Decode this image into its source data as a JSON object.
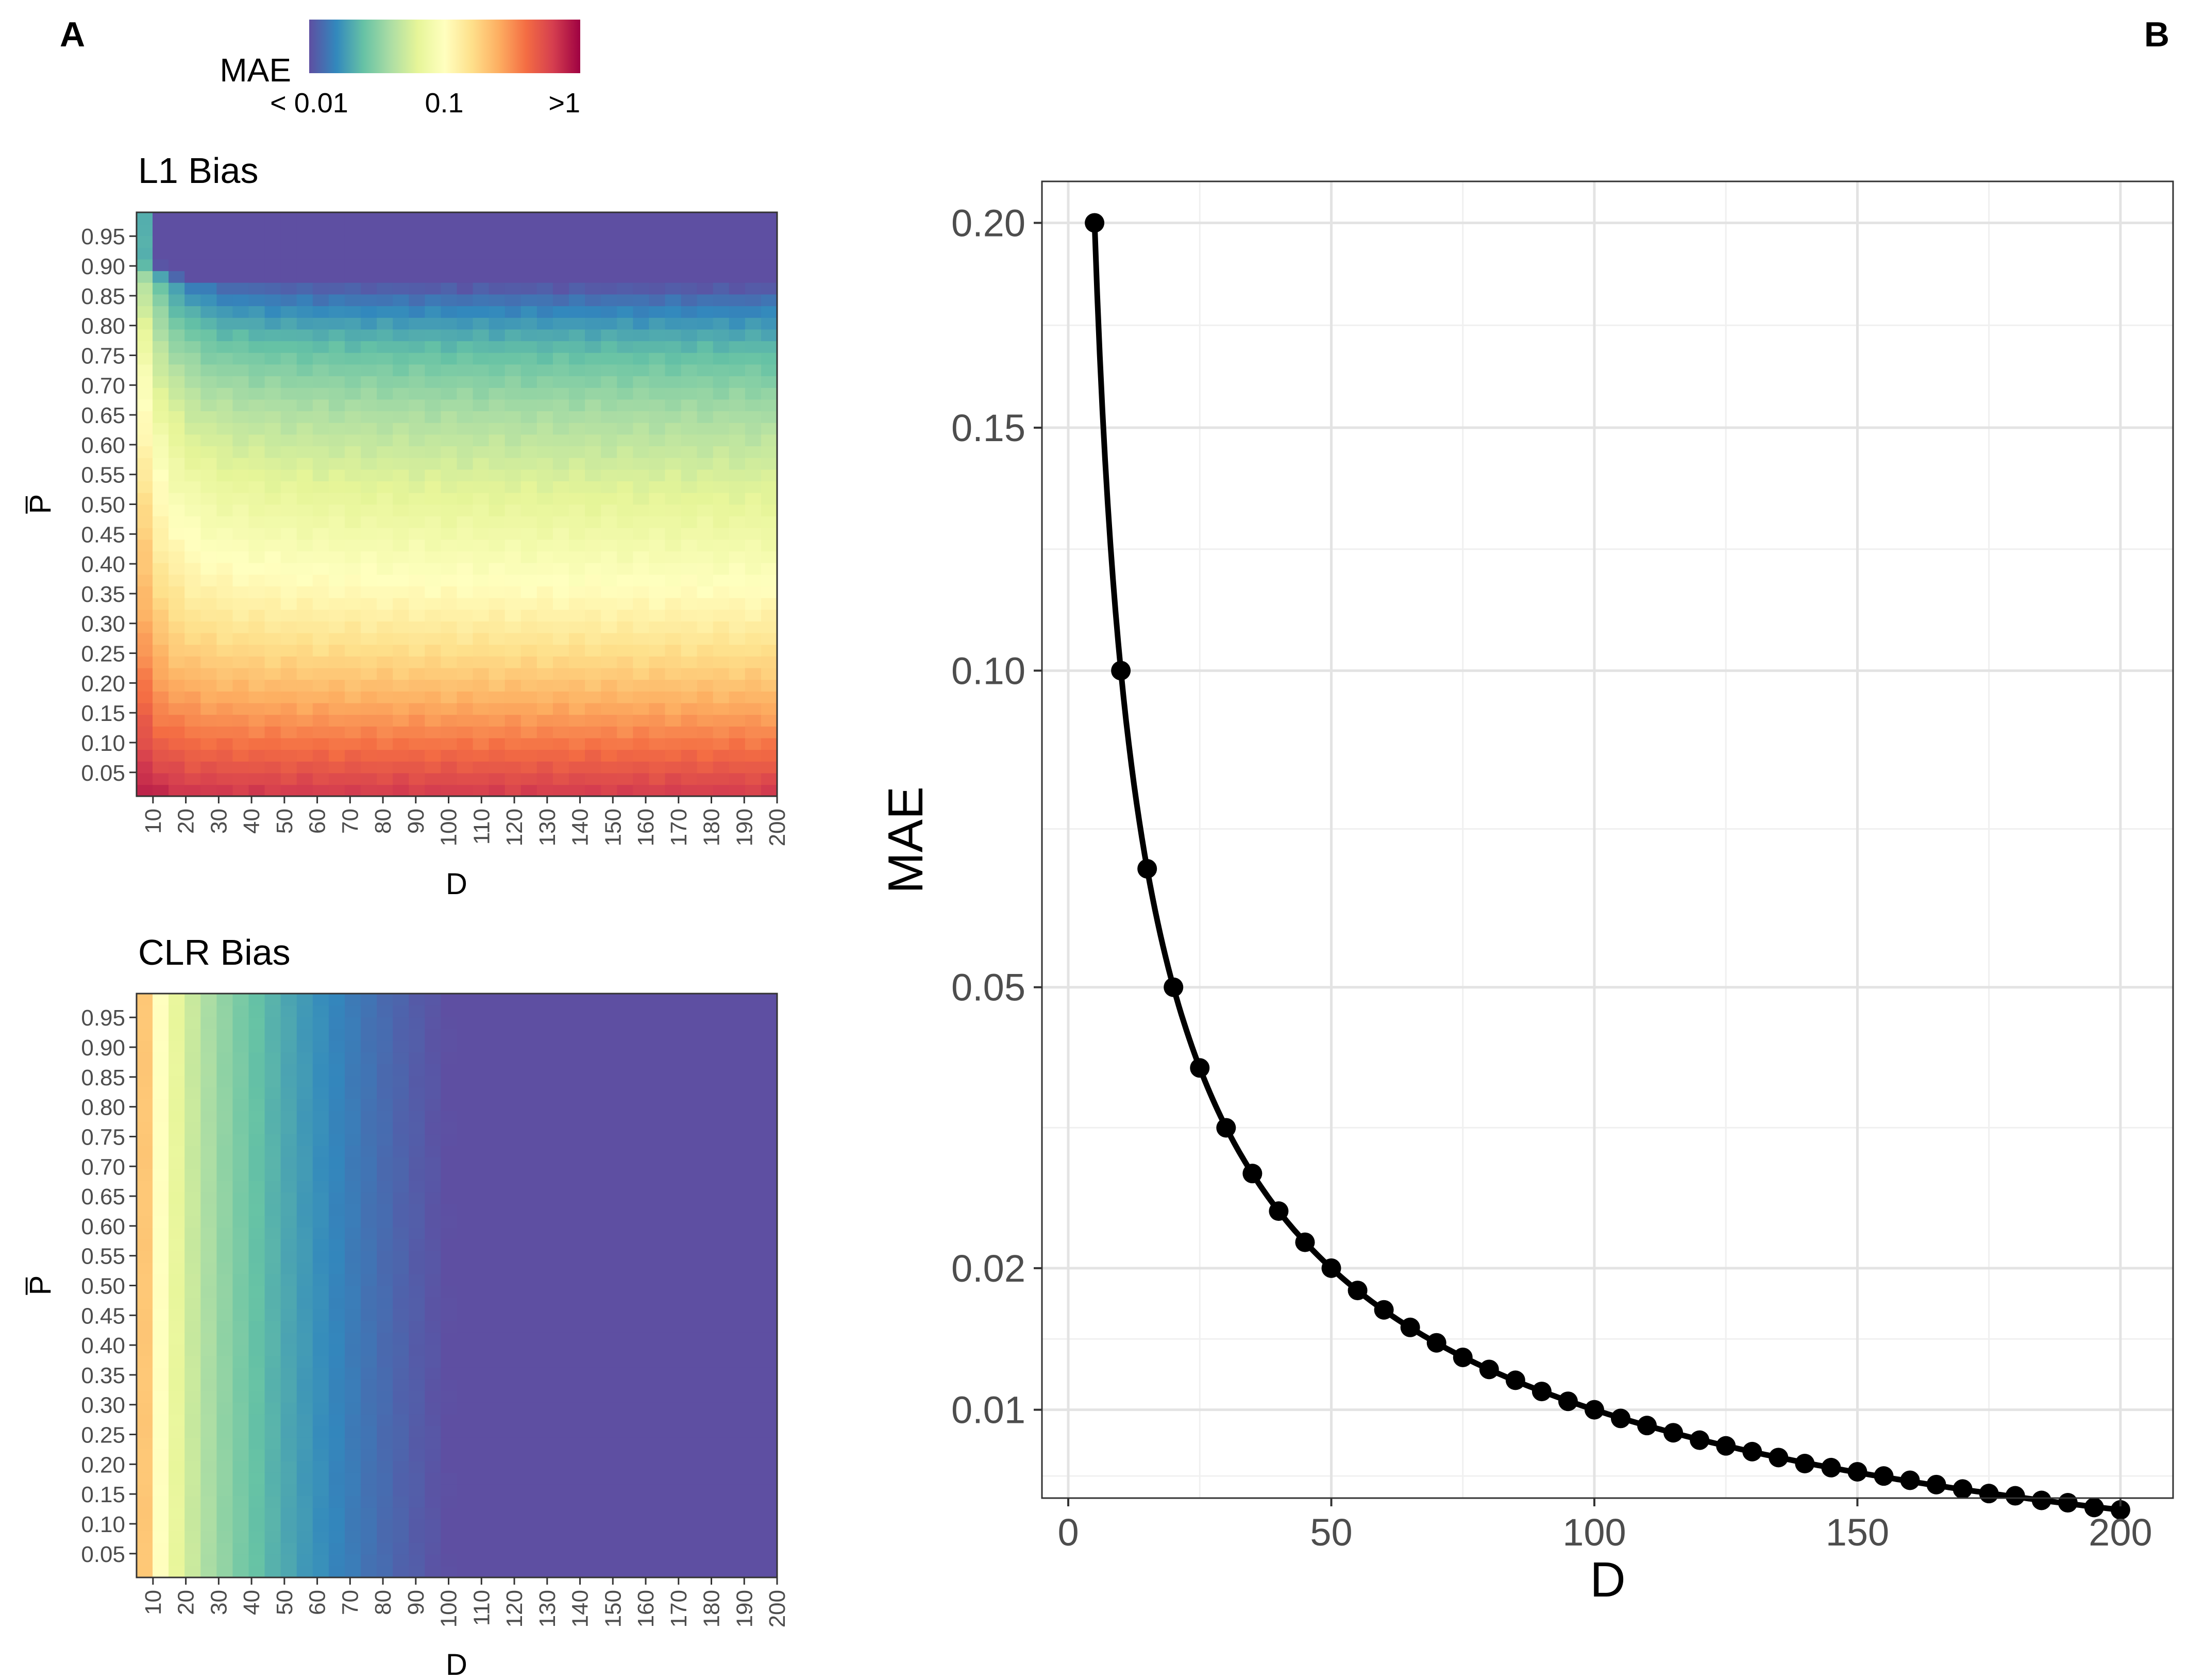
{
  "panel_labels": {
    "a": "A",
    "b": "B"
  },
  "colorbar": {
    "title": "MAE",
    "labels": [
      "< 0.01",
      "0.1",
      ">1"
    ],
    "colors": [
      "#5e4fa2",
      "#3288bd",
      "#66c2a5",
      "#abdda4",
      "#e6f598",
      "#ffffbf",
      "#fee08b",
      "#fdae61",
      "#f46d43",
      "#d53e4f",
      "#9e0142"
    ]
  },
  "chart_data": [
    {
      "type": "heatmap",
      "title": "L1 Bias",
      "xlabel": "D",
      "ylabel": "P̅",
      "x_ticks": [
        "10",
        "20",
        "30",
        "40",
        "50",
        "60",
        "70",
        "80",
        "90",
        "100",
        "110",
        "120",
        "130",
        "140",
        "150",
        "160",
        "170",
        "180",
        "190",
        "200"
      ],
      "y_ticks": [
        "0.95",
        "0.90",
        "0.85",
        "0.80",
        "0.75",
        "0.70",
        "0.65",
        "0.60",
        "0.55",
        "0.50",
        "0.45",
        "0.40",
        "0.35",
        "0.30",
        "0.25",
        "0.20",
        "0.15",
        "0.10",
        "0.05"
      ],
      "x_range": [
        5,
        200
      ],
      "y_range": [
        0.01,
        0.99
      ],
      "grid": {
        "d_start": 5,
        "d_step": 5,
        "d_count": 40,
        "p_start": 0.01,
        "p_step": 0.02,
        "p_count": 50
      },
      "color_scale": "log10 MAE from 0.01 to 1 (Spectral)",
      "description": "MAE increases as P decreases; near P=0.95 and large D MAE < 0.01; near P=0.05 MAE approaches 1"
    },
    {
      "type": "heatmap",
      "title": "CLR Bias",
      "xlabel": "D",
      "ylabel": "P̅",
      "x_ticks": [
        "10",
        "20",
        "30",
        "40",
        "50",
        "60",
        "70",
        "80",
        "90",
        "100",
        "110",
        "120",
        "130",
        "140",
        "150",
        "160",
        "170",
        "180",
        "190",
        "200"
      ],
      "y_ticks": [
        "0.95",
        "0.90",
        "0.85",
        "0.80",
        "0.75",
        "0.70",
        "0.65",
        "0.60",
        "0.55",
        "0.50",
        "0.45",
        "0.40",
        "0.35",
        "0.30",
        "0.25",
        "0.20",
        "0.15",
        "0.10",
        "0.05"
      ],
      "x_range": [
        5,
        200
      ],
      "y_range": [
        0.01,
        0.99
      ],
      "grid": {
        "d_start": 5,
        "d_step": 5,
        "d_count": 40,
        "p_start": 0.01,
        "p_step": 0.02,
        "p_count": 50
      },
      "color_scale": "log10 MAE from 0.01 to 1 (Spectral)",
      "description": "MAE = 1/D independent of P; below 0.01 for D > 100"
    },
    {
      "type": "line",
      "xlabel": "D",
      "ylabel": "MAE",
      "x_ticks": [
        "0",
        "50",
        "100",
        "150",
        "200"
      ],
      "y_ticks": [
        "0.01",
        "0.02",
        "0.05",
        "0.10",
        "0.15",
        "0.20"
      ],
      "xlim": [
        -5,
        210
      ],
      "ylim_sqrt": [
        0.0055,
        0.211
      ],
      "y_scale": "sqrt",
      "grid": true,
      "x": [
        5,
        10,
        15,
        20,
        25,
        30,
        35,
        40,
        45,
        50,
        55,
        60,
        65,
        70,
        75,
        80,
        85,
        90,
        95,
        100,
        105,
        110,
        115,
        120,
        125,
        130,
        135,
        140,
        145,
        150,
        155,
        160,
        165,
        170,
        175,
        180,
        185,
        190,
        195,
        200
      ],
      "y": [
        0.2,
        0.1,
        0.0667,
        0.05,
        0.04,
        0.0333,
        0.0286,
        0.025,
        0.0222,
        0.02,
        0.0182,
        0.0167,
        0.0154,
        0.0143,
        0.0133,
        0.0125,
        0.0118,
        0.0111,
        0.0105,
        0.01,
        0.0095,
        0.0091,
        0.0087,
        0.0083,
        0.008,
        0.0077,
        0.0074,
        0.0071,
        0.0069,
        0.0067,
        0.0065,
        0.0063,
        0.0061,
        0.0059,
        0.0057,
        0.0056,
        0.0054,
        0.0053,
        0.0051,
        0.005
      ]
    }
  ]
}
